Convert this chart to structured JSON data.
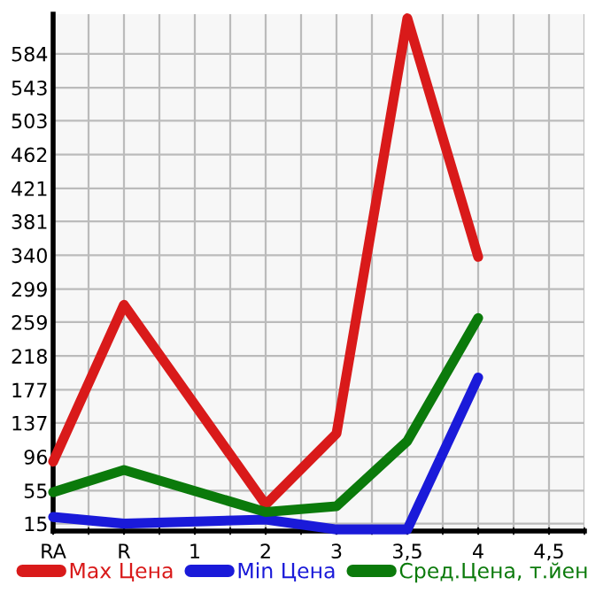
{
  "chart_data": {
    "type": "line",
    "categories": [
      "RA",
      "R",
      "1",
      "2",
      "3",
      "3,5",
      "4",
      "4,5"
    ],
    "series": [
      {
        "name": "Max Цена",
        "color": "#d91a1a",
        "values": [
          90,
          280,
          null,
          38,
          124,
          627,
          338,
          null
        ]
      },
      {
        "name": "Min Цена",
        "color": "#1a1ad9",
        "values": [
          23,
          15,
          null,
          20,
          8,
          8,
          192,
          null
        ]
      },
      {
        "name": "Сред.Цена, т.йен",
        "color": "#0b7a0b",
        "values": [
          53,
          80,
          null,
          29,
          36,
          115,
          264,
          null
        ]
      }
    ],
    "ylim": [
      6,
      632
    ],
    "yticks": [
      15,
      55,
      96,
      137,
      177,
      218,
      259,
      299,
      340,
      381,
      421,
      462,
      503,
      543,
      584
    ],
    "grid": true,
    "legend": "bottom",
    "marker": "none",
    "line_style": "solid"
  }
}
